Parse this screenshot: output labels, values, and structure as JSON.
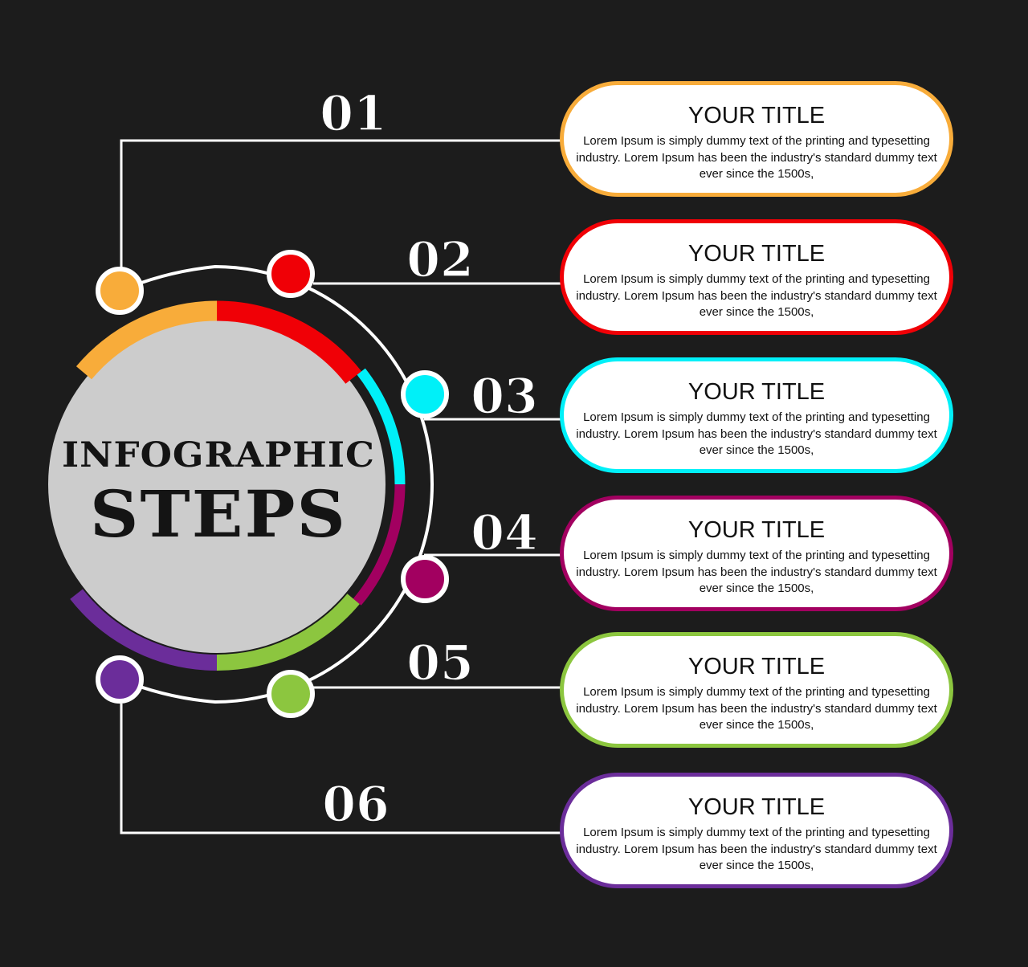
{
  "headline": {
    "line1": "INFOGRAPHIC",
    "line2": "STEPS"
  },
  "colors": {
    "background": "#1c1c1c",
    "line": "#ffffff",
    "disc": "#cccccc"
  },
  "steps": [
    {
      "number": "01",
      "title": "YOUR TITLE",
      "text": "Lorem Ipsum is simply dummy text of the printing and typesetting industry. Lorem Ipsum has been the industry's standard dummy text ever since the 1500s,",
      "color": "#f8ac3a"
    },
    {
      "number": "02",
      "title": "YOUR TITLE",
      "text": "Lorem Ipsum is simply dummy text of the printing and typesetting industry. Lorem Ipsum has been the industry's standard dummy text ever since the 1500s,",
      "color": "#f00006"
    },
    {
      "number": "03",
      "title": "YOUR TITLE",
      "text": "Lorem Ipsum is simply dummy text of the printing and typesetting industry. Lorem Ipsum has been the industry's standard dummy text ever since the 1500s,",
      "color": "#00f0f8"
    },
    {
      "number": "04",
      "title": "YOUR TITLE",
      "text": "Lorem Ipsum is simply dummy text of the printing and typesetting industry. Lorem Ipsum has been the industry's standard dummy text ever since the 1500s,",
      "color": "#a20060"
    },
    {
      "number": "05",
      "title": "YOUR TITLE",
      "text": "Lorem Ipsum is simply dummy text of the printing and typesetting industry. Lorem Ipsum has been the industry's standard dummy text ever since the 1500s,",
      "color": "#8cc63f"
    },
    {
      "number": "06",
      "title": "YOUR TITLE",
      "text": "Lorem Ipsum is simply dummy text of the printing and typesetting industry. Lorem Ipsum has been the industry's standard dummy text ever since the 1500s,",
      "color": "#6b2d9a"
    }
  ]
}
